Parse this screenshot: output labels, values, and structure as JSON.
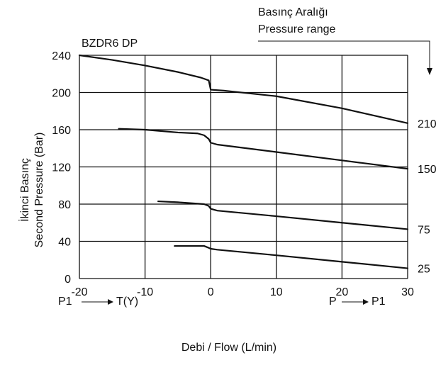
{
  "chart_data": {
    "type": "line",
    "title": "BZDR6 DP",
    "xlabel": "Debi / Flow (L/min)",
    "ylabel_line1": "İkinci Basınç",
    "ylabel_line2": "Second Pressure (Bar)",
    "xlim": [
      -20,
      30
    ],
    "ylim": [
      0,
      240
    ],
    "x_ticks": [
      -20,
      -10,
      0,
      10,
      20,
      30
    ],
    "y_ticks": [
      0,
      40,
      80,
      120,
      160,
      200,
      240
    ],
    "grid": true,
    "range_legend": {
      "line1": "Basınç Aralığı",
      "line2": "Pressure range"
    },
    "flow_left": {
      "from": "P1",
      "to": "T(Y)"
    },
    "flow_right": {
      "from": "P",
      "to": "P1"
    },
    "series": [
      {
        "name": "210",
        "x": [
          -20,
          -15,
          -10,
          -5,
          -1.5,
          -0.3,
          0,
          2,
          10,
          20,
          30
        ],
        "y": [
          240,
          235,
          229,
          222,
          216,
          213,
          203,
          202,
          196,
          183,
          167
        ]
      },
      {
        "name": "150",
        "x": [
          -14,
          -10,
          -5,
          -2,
          -1,
          -0.3,
          0,
          1,
          10,
          20,
          30
        ],
        "y": [
          161,
          160,
          157,
          156,
          154,
          150,
          146,
          144,
          136,
          127,
          118
        ]
      },
      {
        "name": "75",
        "x": [
          -8,
          -5,
          -1,
          -0.3,
          0,
          1,
          10,
          20,
          30
        ],
        "y": [
          83,
          82,
          80,
          78,
          75,
          73,
          67,
          60,
          53
        ]
      },
      {
        "name": "25",
        "x": [
          -5.5,
          -1,
          -0.3,
          0,
          1,
          10,
          20,
          30
        ],
        "y": [
          35,
          35,
          33,
          32,
          31,
          25,
          18,
          11
        ]
      }
    ]
  }
}
